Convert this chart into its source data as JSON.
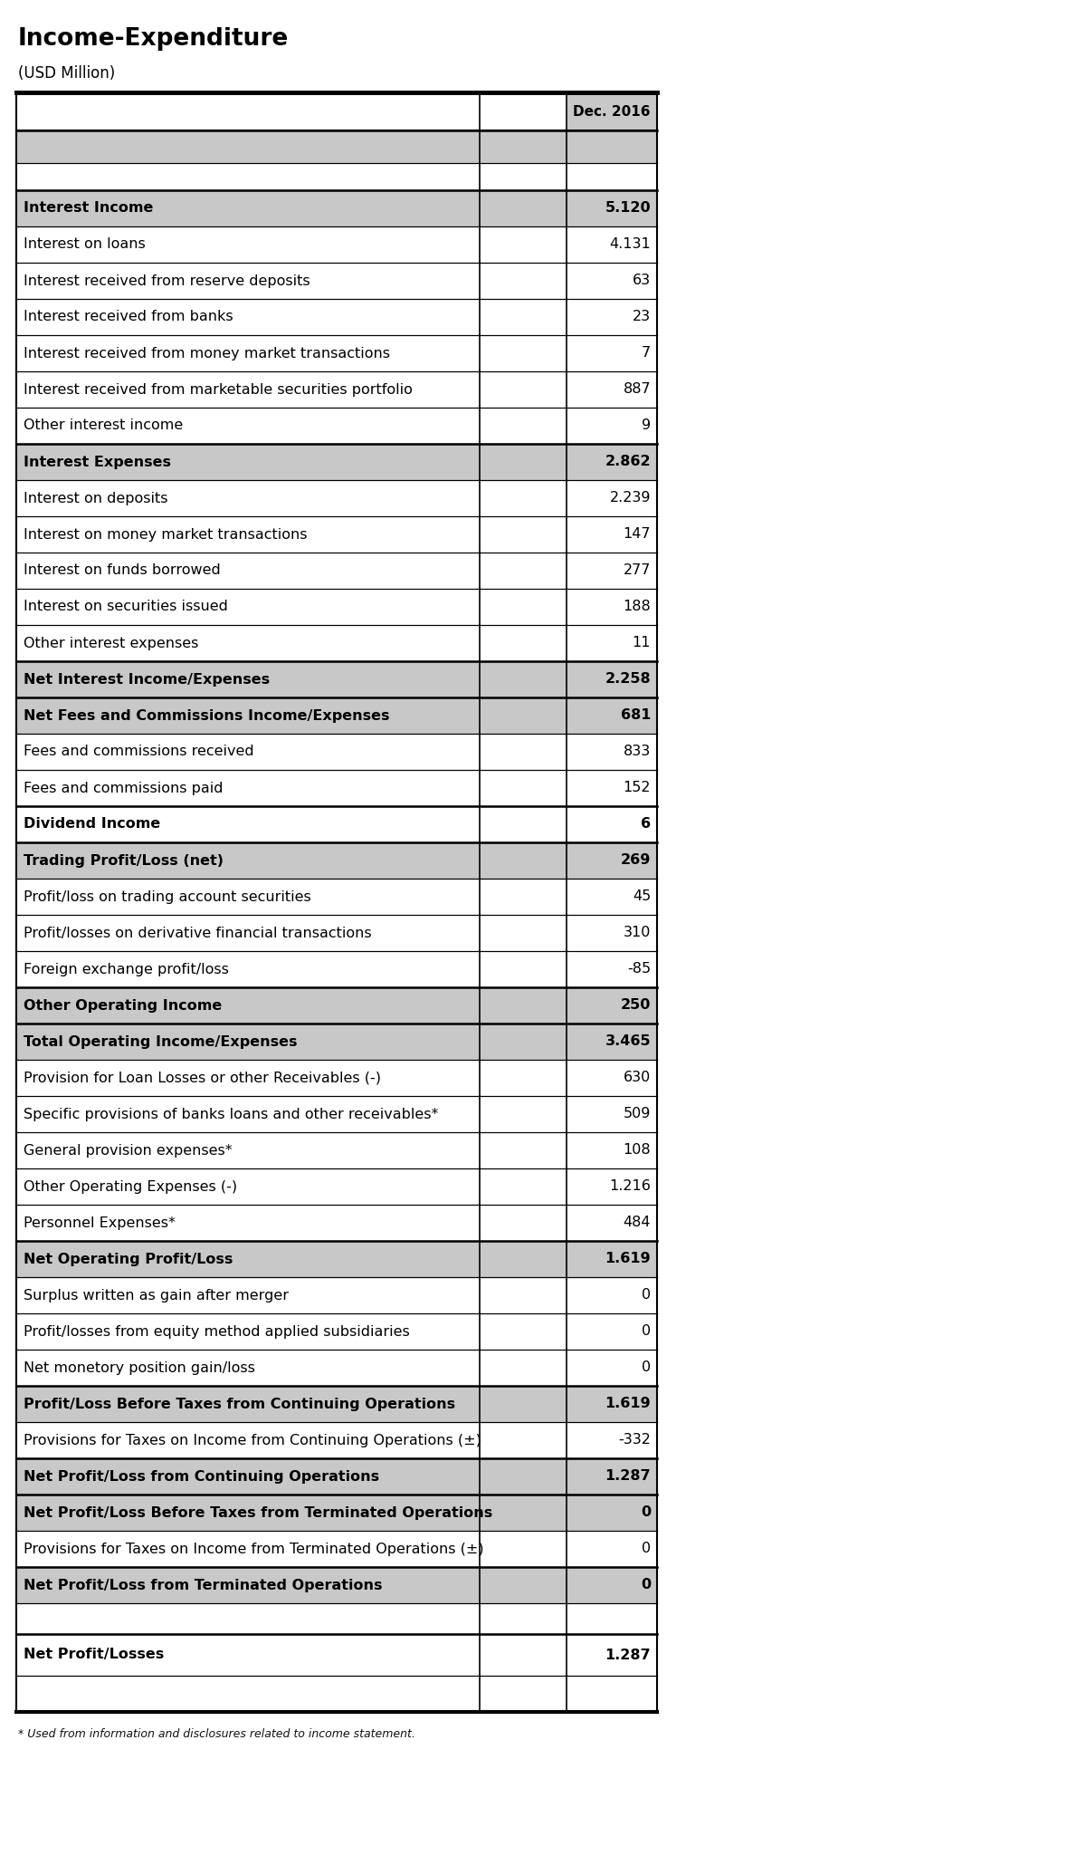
{
  "title": "Income-Expenditure",
  "subtitle": "(USD Million)",
  "col_header": "Dec. 2016",
  "rows": [
    {
      "label": "Interest Income",
      "value": "5.120",
      "style": "bold_gray"
    },
    {
      "label": "Interest on loans",
      "value": "4.131",
      "style": "normal"
    },
    {
      "label": "Interest received from reserve deposits",
      "value": "63",
      "style": "normal"
    },
    {
      "label": "Interest received from banks",
      "value": "23",
      "style": "normal"
    },
    {
      "label": "Interest received from money market transactions",
      "value": "7",
      "style": "normal"
    },
    {
      "label": "Interest received from marketable securities portfolio",
      "value": "887",
      "style": "normal"
    },
    {
      "label": "Other interest income",
      "value": "9",
      "style": "normal"
    },
    {
      "label": "Interest Expenses",
      "value": "2.862",
      "style": "bold_gray"
    },
    {
      "label": "Interest on deposits",
      "value": "2.239",
      "style": "normal"
    },
    {
      "label": "Interest on money market transactions",
      "value": "147",
      "style": "normal"
    },
    {
      "label": "Interest on funds borrowed",
      "value": "277",
      "style": "normal"
    },
    {
      "label": "Interest on securities issued",
      "value": "188",
      "style": "normal"
    },
    {
      "label": "Other interest expenses",
      "value": "11",
      "style": "normal"
    },
    {
      "label": "Net Interest Income/Expenses",
      "value": "2.258",
      "style": "bold_gray"
    },
    {
      "label": "Net Fees and Commissions Income/Expenses",
      "value": "681",
      "style": "bold_gray"
    },
    {
      "label": "Fees and commissions received",
      "value": "833",
      "style": "normal"
    },
    {
      "label": "Fees and commissions paid",
      "value": "152",
      "style": "normal"
    },
    {
      "label": "Dividend Income",
      "value": "6",
      "style": "bold_white"
    },
    {
      "label": "Trading Profit/Loss (net)",
      "value": "269",
      "style": "bold_gray"
    },
    {
      "label": "Profit/loss on trading account securities",
      "value": "45",
      "style": "normal"
    },
    {
      "label": "Profit/losses on derivative financial transactions",
      "value": "310",
      "style": "normal"
    },
    {
      "label": "Foreign exchange profit/loss",
      "value": "-85",
      "style": "normal"
    },
    {
      "label": "Other Operating Income",
      "value": "250",
      "style": "bold_gray"
    },
    {
      "label": "Total Operating Income/Expenses",
      "value": "3.465",
      "style": "bold_gray"
    },
    {
      "label": "Provision for Loan Losses or other Receivables (-)",
      "value": "630",
      "style": "normal"
    },
    {
      "label": "Specific provisions of banks loans and other receivables*",
      "value": "509",
      "style": "normal"
    },
    {
      "label": "General provision expenses*",
      "value": "108",
      "style": "normal"
    },
    {
      "label": "Other Operating Expenses (-)",
      "value": "1.216",
      "style": "normal"
    },
    {
      "label": "Personnel Expenses*",
      "value": "484",
      "style": "normal"
    },
    {
      "label": "Net Operating Profit/Loss",
      "value": "1.619",
      "style": "bold_gray"
    },
    {
      "label": "Surplus written as gain after merger",
      "value": "0",
      "style": "normal"
    },
    {
      "label": "Profit/losses from equity method applied subsidiaries",
      "value": "0",
      "style": "normal"
    },
    {
      "label": "Net monetory position gain/loss",
      "value": "0",
      "style": "normal"
    },
    {
      "label": "Profit/Loss Before Taxes from Continuing Operations",
      "value": "1.619",
      "style": "bold_gray"
    },
    {
      "label": "Provisions for Taxes on Income from Continuing Operations (±)",
      "value": "-332",
      "style": "normal"
    },
    {
      "label": "Net Profit/Loss from Continuing Operations",
      "value": "1.287",
      "style": "bold_gray"
    },
    {
      "label": "Net Profit/Loss Before Taxes from Terminated Operations",
      "value": "0",
      "style": "bold_gray"
    },
    {
      "label": "Provisions for Taxes on Income from Terminated Operations (±)",
      "value": "0",
      "style": "normal"
    },
    {
      "label": "Net Profit/Loss from Terminated Operations",
      "value": "0",
      "style": "bold_gray"
    },
    {
      "label": "",
      "value": "",
      "style": "empty"
    },
    {
      "label": "Net Profit/Losses",
      "value": "1.287",
      "style": "bold_white_sep"
    },
    {
      "label": "",
      "value": "",
      "style": "empty_bottom"
    }
  ],
  "footnote": "* Used from information and disclosures related to income statement.",
  "bg_color_gray": "#c8c8c8",
  "bg_color_white": "#ffffff",
  "text_color": "#000000"
}
